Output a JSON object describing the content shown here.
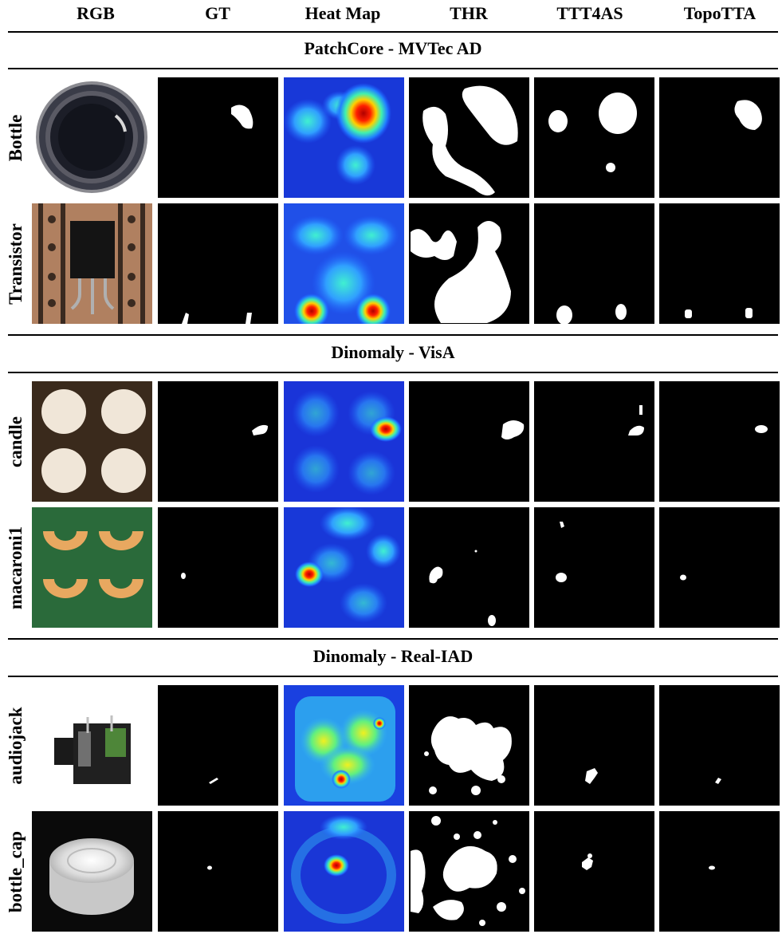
{
  "columns": [
    "RGB",
    "GT",
    "Heat Map",
    "THR",
    "TTT4AS",
    "TopoTTA"
  ],
  "sections": [
    {
      "title": "PatchCore - MVTec AD",
      "rows": [
        {
          "label": "Bottle"
        },
        {
          "label": "Transistor"
        }
      ]
    },
    {
      "title": "Dinomaly - VisA",
      "rows": [
        {
          "label": "candle"
        },
        {
          "label": "macaroni1"
        }
      ]
    },
    {
      "title": "Dinomaly - Real-IAD",
      "rows": [
        {
          "label": "audiojack"
        },
        {
          "label": "bottle_cap"
        }
      ]
    }
  ],
  "colors": {
    "mask_background": "#000000",
    "mask_foreground": "#ffffff",
    "heatmap_low": "#1030e0",
    "heatmap_mid": "#40e0c0",
    "heatmap_high": "#e01010"
  }
}
